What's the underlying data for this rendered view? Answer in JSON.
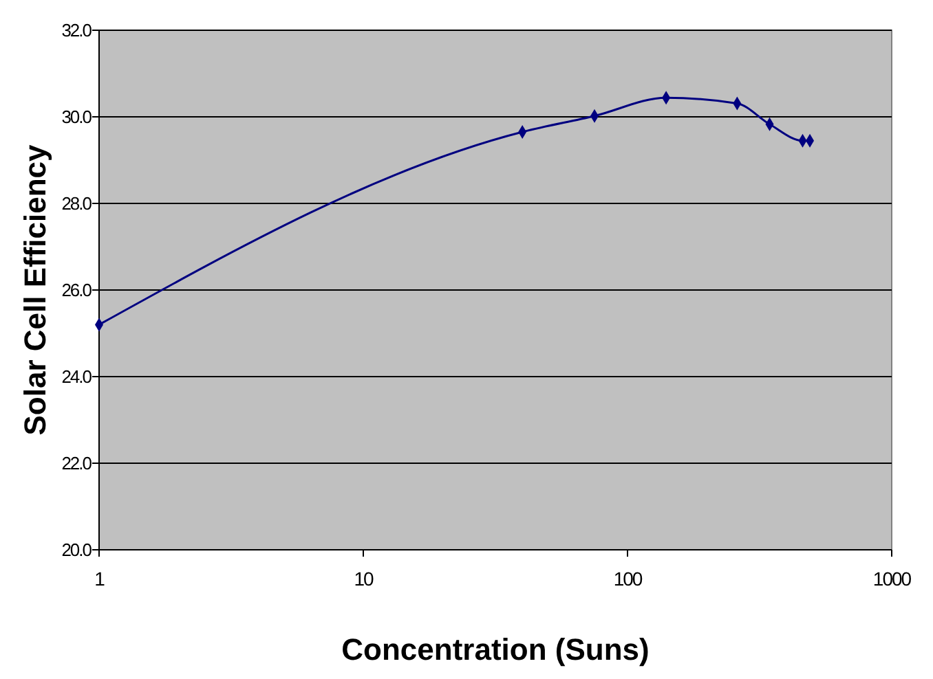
{
  "chart_data": {
    "type": "line",
    "xlabel": "Concentration (Suns)",
    "ylabel": "Solar Cell Efficiency",
    "x": [
      1,
      40,
      75,
      140,
      260,
      345,
      460,
      490
    ],
    "series": [
      {
        "color": "#000080",
        "values": [
          25.2,
          29.65,
          30.02,
          30.44,
          30.31,
          29.83,
          29.45,
          29.45
        ]
      }
    ],
    "log": "x",
    "xlim": [
      1,
      1000
    ],
    "xticks": [
      1,
      10,
      100,
      1000
    ],
    "ylim": [
      20,
      32
    ],
    "yticks": [
      {
        "value": 20,
        "label": "20.0"
      },
      {
        "value": 22,
        "label": "22.0"
      },
      {
        "value": 24,
        "label": "24.0"
      },
      {
        "value": 26,
        "label": "26.0"
      },
      {
        "value": 28,
        "label": "28.0"
      },
      {
        "value": 30,
        "label": "30.0"
      },
      {
        "value": 32,
        "label": "32.0"
      }
    ],
    "grid": "y",
    "marker": "diamond",
    "line_style": "solid"
  }
}
